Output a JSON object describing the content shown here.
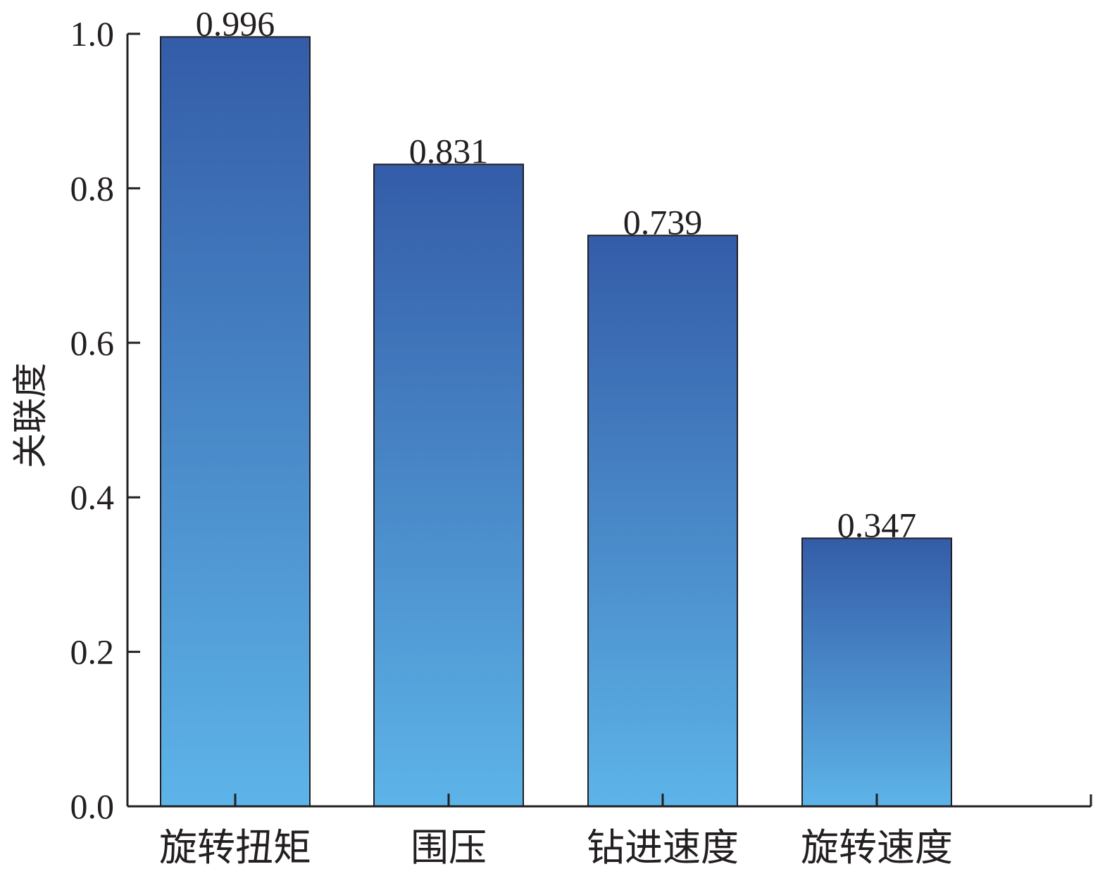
{
  "chart_data": {
    "type": "bar",
    "categories": [
      "旋转扭矩",
      "围压",
      "钻进速度",
      "旋转速度"
    ],
    "values": [
      0.996,
      0.831,
      0.739,
      0.347
    ],
    "data_labels": [
      "0.996",
      "0.831",
      "0.739",
      "0.347"
    ],
    "title": "",
    "xlabel": "",
    "ylabel": "关联度",
    "ylim": [
      0,
      1.0
    ],
    "yticks": [
      0.0,
      0.2,
      0.4,
      0.6,
      0.8,
      1.0
    ],
    "ytick_labels": [
      "0.0",
      "0.2",
      "0.4",
      "0.6",
      "0.8",
      "1.0"
    ],
    "grid": false,
    "legend": "none",
    "colors": {
      "bar_top": "#345ca8",
      "bar_bottom": "#5db4e8",
      "axis": "#231f20"
    }
  }
}
